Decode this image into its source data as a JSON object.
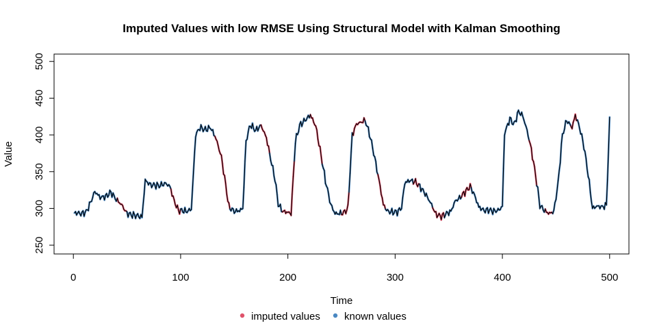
{
  "chart_data": {
    "type": "line",
    "title": "Imputed Values with low RMSE Using Structural Model with Kalman Smoothing",
    "xlabel": "Time",
    "ylabel": "Value",
    "xlim": [
      -18,
      518
    ],
    "ylim": [
      238,
      510
    ],
    "xticks": [
      0,
      100,
      200,
      300,
      400,
      500
    ],
    "yticks": [
      250,
      300,
      350,
      400,
      450,
      500
    ],
    "grid": false,
    "legend_position": "bottom-center",
    "colors": {
      "imputed": "#df536b",
      "known": "#4a88c2",
      "line": "#000000"
    },
    "legend": [
      {
        "key": "imputed",
        "label": "imputed values",
        "color": "#df536b"
      },
      {
        "key": "known",
        "label": "known values",
        "color": "#4a88c2"
      }
    ],
    "series_anchors": [
      [
        1,
        294
      ],
      [
        8,
        293
      ],
      [
        12,
        295
      ],
      [
        16,
        308
      ],
      [
        20,
        323
      ],
      [
        25,
        315
      ],
      [
        30,
        316
      ],
      [
        35,
        322
      ],
      [
        40,
        312
      ],
      [
        45,
        305
      ],
      [
        50,
        293
      ],
      [
        55,
        291
      ],
      [
        60,
        290
      ],
      [
        64,
        288
      ],
      [
        67,
        338
      ],
      [
        72,
        332
      ],
      [
        80,
        331
      ],
      [
        86,
        334
      ],
      [
        90,
        330
      ],
      [
        94,
        310
      ],
      [
        98,
        297
      ],
      [
        102,
        297
      ],
      [
        106,
        296
      ],
      [
        110,
        299
      ],
      [
        114,
        400
      ],
      [
        118,
        410
      ],
      [
        123,
        407
      ],
      [
        128,
        410
      ],
      [
        133,
        395
      ],
      [
        138,
        370
      ],
      [
        142,
        332
      ],
      [
        145,
        302
      ],
      [
        150,
        296
      ],
      [
        155,
        297
      ],
      [
        158,
        300
      ],
      [
        161,
        392
      ],
      [
        165,
        414
      ],
      [
        170,
        406
      ],
      [
        175,
        413
      ],
      [
        180,
        396
      ],
      [
        185,
        360
      ],
      [
        188,
        340
      ],
      [
        191,
        306
      ],
      [
        195,
        296
      ],
      [
        199,
        295
      ],
      [
        203,
        293
      ],
      [
        207,
        391
      ],
      [
        211,
        413
      ],
      [
        216,
        420
      ],
      [
        221,
        427
      ],
      [
        226,
        412
      ],
      [
        230,
        380
      ],
      [
        235,
        338
      ],
      [
        240,
        305
      ],
      [
        244,
        293
      ],
      [
        248,
        293
      ],
      [
        252,
        294
      ],
      [
        256,
        300
      ],
      [
        260,
        400
      ],
      [
        264,
        415
      ],
      [
        268,
        417
      ],
      [
        272,
        420
      ],
      [
        276,
        402
      ],
      [
        280,
        376
      ],
      [
        285,
        338
      ],
      [
        289,
        305
      ],
      [
        293,
        296
      ],
      [
        298,
        295
      ],
      [
        302,
        295
      ],
      [
        306,
        301
      ],
      [
        309,
        335
      ],
      [
        314,
        338
      ],
      [
        319,
        336
      ],
      [
        324,
        328
      ],
      [
        329,
        318
      ],
      [
        334,
        305
      ],
      [
        338,
        292
      ],
      [
        343,
        289
      ],
      [
        348,
        293
      ],
      [
        352,
        296
      ],
      [
        356,
        310
      ],
      [
        360,
        314
      ],
      [
        365,
        322
      ],
      [
        370,
        330
      ],
      [
        374,
        318
      ],
      [
        378,
        302
      ],
      [
        383,
        297
      ],
      [
        387,
        298
      ],
      [
        392,
        296
      ],
      [
        397,
        298
      ],
      [
        400,
        303
      ],
      [
        402,
        402
      ],
      [
        407,
        422
      ],
      [
        411,
        414
      ],
      [
        415,
        432
      ],
      [
        419,
        426
      ],
      [
        423,
        406
      ],
      [
        427,
        380
      ],
      [
        431,
        345
      ],
      [
        435,
        304
      ],
      [
        440,
        296
      ],
      [
        444,
        293
      ],
      [
        448,
        296
      ],
      [
        452,
        335
      ],
      [
        456,
        400
      ],
      [
        460,
        420
      ],
      [
        465,
        410
      ],
      [
        468,
        427
      ],
      [
        472,
        410
      ],
      [
        476,
        385
      ],
      [
        480,
        346
      ],
      [
        484,
        300
      ],
      [
        488,
        303
      ],
      [
        493,
        302
      ],
      [
        497,
        304
      ],
      [
        500,
        420
      ]
    ],
    "imputed_ranges": [
      [
        42,
        50
      ],
      [
        92,
        100
      ],
      [
        133,
        146
      ],
      [
        176,
        183
      ],
      [
        196,
        206
      ],
      [
        222,
        232
      ],
      [
        251,
        257
      ],
      [
        262,
        272
      ],
      [
        285,
        291
      ],
      [
        318,
        323
      ],
      [
        336,
        346
      ],
      [
        363,
        371
      ],
      [
        426,
        432
      ],
      [
        441,
        447
      ],
      [
        465,
        470
      ]
    ]
  }
}
